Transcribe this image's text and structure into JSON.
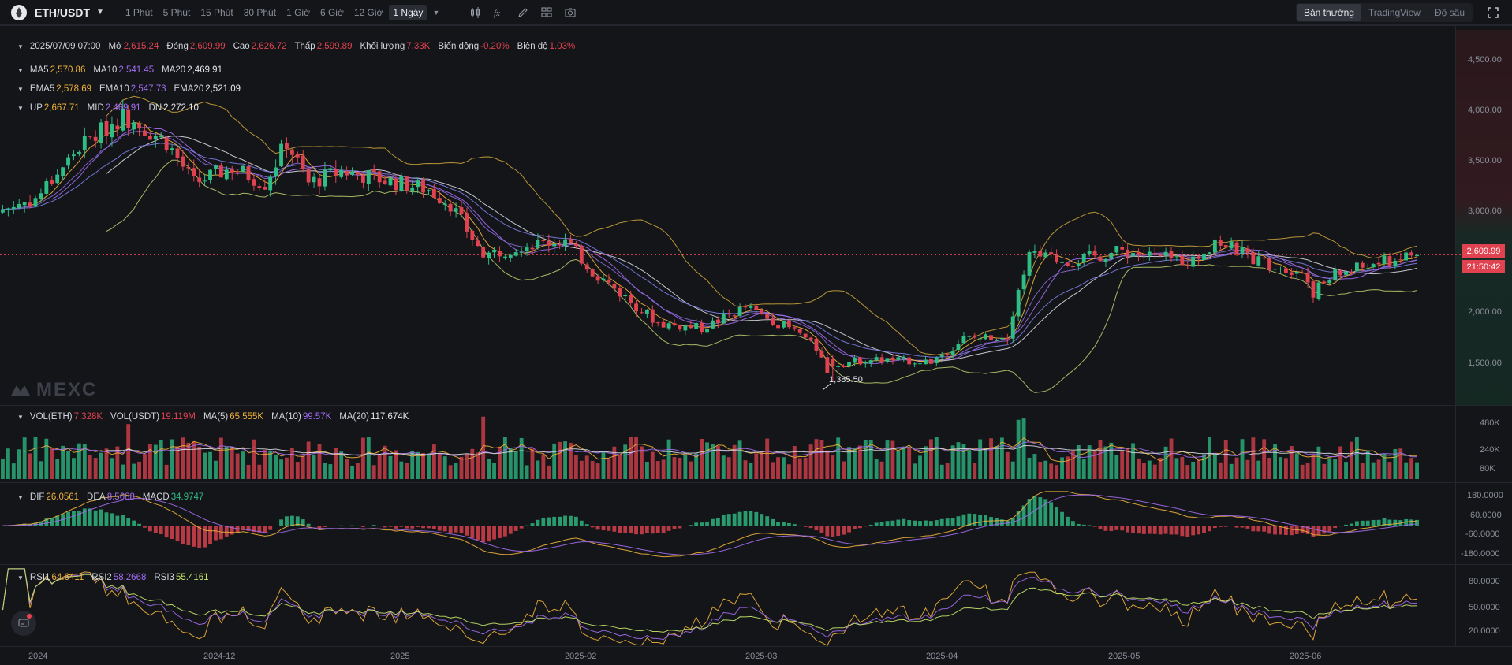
{
  "toolbar": {
    "symbol": "ETH/USDT",
    "intervals": [
      "1 Phút",
      "5 Phút",
      "15 Phút",
      "30 Phút",
      "1 Giờ",
      "6 Giờ",
      "12 Giờ",
      "1 Ngày"
    ],
    "active_interval": "1 Ngày",
    "views": [
      "Bản thường",
      "TradingView",
      "Độ sâu"
    ],
    "active_view": "Bản thường"
  },
  "legend": {
    "ohlc": {
      "date": "2025/07/09 07:00",
      "open_label": "Mở",
      "open": "2,615.24",
      "close_label": "Đóng",
      "close": "2,609.99",
      "high_label": "Cao",
      "high": "2,626.72",
      "low_label": "Thấp",
      "low": "2,599.89",
      "volume_label": "Khối lượng",
      "volume": "7.33K",
      "change_label": "Biến động",
      "change": "-0.20%",
      "amplitude_label": "Biên độ",
      "amplitude": "1.03%"
    },
    "ma": [
      {
        "name": "MA5",
        "value": "2,570.86",
        "color": "#f0b33a"
      },
      {
        "name": "MA10",
        "value": "2,541.45",
        "color": "#a26df0"
      },
      {
        "name": "MA20",
        "value": "2,469.91",
        "color": "#e7e9ee"
      }
    ],
    "ema": [
      {
        "name": "EMA5",
        "value": "2,578.69",
        "color": "#f0b33a"
      },
      {
        "name": "EMA10",
        "value": "2,547.73",
        "color": "#a26df0"
      },
      {
        "name": "EMA20",
        "value": "2,521.09",
        "color": "#e7e9ee"
      }
    ],
    "boll": [
      {
        "name": "UP",
        "value": "2,667.71",
        "color": "#f0b33a"
      },
      {
        "name": "MID",
        "value": "2,469.91",
        "color": "#a26df0"
      },
      {
        "name": "DN",
        "value": "2,272.10",
        "color": "#e7e9ee"
      }
    ],
    "vol": [
      {
        "name": "VOL(ETH)",
        "value": "7.328K",
        "color": "#e0434f"
      },
      {
        "name": "VOL(USDT)",
        "value": "19.119M",
        "color": "#e0434f"
      },
      {
        "name": "MA(5)",
        "value": "65.555K",
        "color": "#f0b33a"
      },
      {
        "name": "MA(10)",
        "value": "99.57K",
        "color": "#a26df0"
      },
      {
        "name": "MA(20)",
        "value": "117.674K",
        "color": "#e7e9ee"
      }
    ],
    "macd": [
      {
        "name": "DIF",
        "value": "26.0561",
        "color": "#f0b33a"
      },
      {
        "name": "DEA",
        "value": "8.5688",
        "color": "#a26df0"
      },
      {
        "name": "MACD",
        "value": "34.9747",
        "color": "#2ebd85"
      }
    ],
    "rsi": [
      {
        "name": "RSI1",
        "value": "64.6411",
        "color": "#f0b33a"
      },
      {
        "name": "RSI2",
        "value": "58.2668",
        "color": "#a26df0"
      },
      {
        "name": "RSI3",
        "value": "55.4161",
        "color": "#c6e56b"
      }
    ]
  },
  "price_tag": {
    "price": "2,609.99",
    "countdown": "21:50:42"
  },
  "low_marker": "1,385.50",
  "watermark": "MEXC",
  "colors": {
    "up": "#2ebd85",
    "down": "#e0434f",
    "bg": "#141519",
    "grid": "#1f2127"
  },
  "chart_data": {
    "type": "candlestick",
    "x": [
      "2024",
      "2024-12",
      "2025",
      "2025-02",
      "2025-03",
      "2025-04",
      "2025-05",
      "2025-06"
    ],
    "price_axis": {
      "ticks": [
        "4,500.00",
        "4,000.00",
        "3,500.00",
        "3,000.00",
        "2,000.00",
        "1,500.00"
      ],
      "ylim": [
        1160,
        4780
      ]
    },
    "volume_axis": {
      "ticks": [
        "480K",
        "240K",
        "80K"
      ],
      "ylim": [
        0,
        620000
      ]
    },
    "macd_axis": {
      "ticks": [
        "180.0000",
        "60.0000",
        "-60.0000",
        "-180.0000"
      ],
      "ylim": [
        -240,
        240
      ]
    },
    "rsi_axis": {
      "ticks": [
        "80.0000",
        "50.0000",
        "20.0000"
      ],
      "ylim": [
        8,
        98
      ]
    },
    "current_price": 2609.99,
    "low": 1385.5,
    "overlays": [
      "MA5",
      "MA10",
      "MA20",
      "EMA5",
      "EMA10",
      "EMA20",
      "BOLL(UP, MID, DN)"
    ],
    "close_path": [
      [
        0,
        3050
      ],
      [
        6,
        3150
      ],
      [
        14,
        3650
      ],
      [
        22,
        3950
      ],
      [
        30,
        3700
      ],
      [
        35,
        3300
      ],
      [
        42,
        3450
      ],
      [
        48,
        3300
      ],
      [
        52,
        3700
      ],
      [
        56,
        3300
      ],
      [
        62,
        3420
      ],
      [
        70,
        3330
      ],
      [
        78,
        3240
      ],
      [
        82,
        3100
      ],
      [
        88,
        2600
      ],
      [
        95,
        2700
      ],
      [
        103,
        2750
      ],
      [
        108,
        2450
      ],
      [
        114,
        2200
      ],
      [
        120,
        1950
      ],
      [
        128,
        1900
      ],
      [
        136,
        2100
      ],
      [
        146,
        1850
      ],
      [
        152,
        1550
      ],
      [
        158,
        1600
      ],
      [
        170,
        1580
      ],
      [
        176,
        1800
      ],
      [
        184,
        1830
      ],
      [
        186,
        2300
      ],
      [
        188,
        2600
      ],
      [
        196,
        2550
      ],
      [
        205,
        2650
      ],
      [
        212,
        2580
      ],
      [
        218,
        2550
      ],
      [
        222,
        2750
      ],
      [
        230,
        2550
      ],
      [
        238,
        2450
      ],
      [
        240,
        2250
      ],
      [
        244,
        2420
      ],
      [
        250,
        2500
      ],
      [
        258,
        2610
      ]
    ]
  }
}
